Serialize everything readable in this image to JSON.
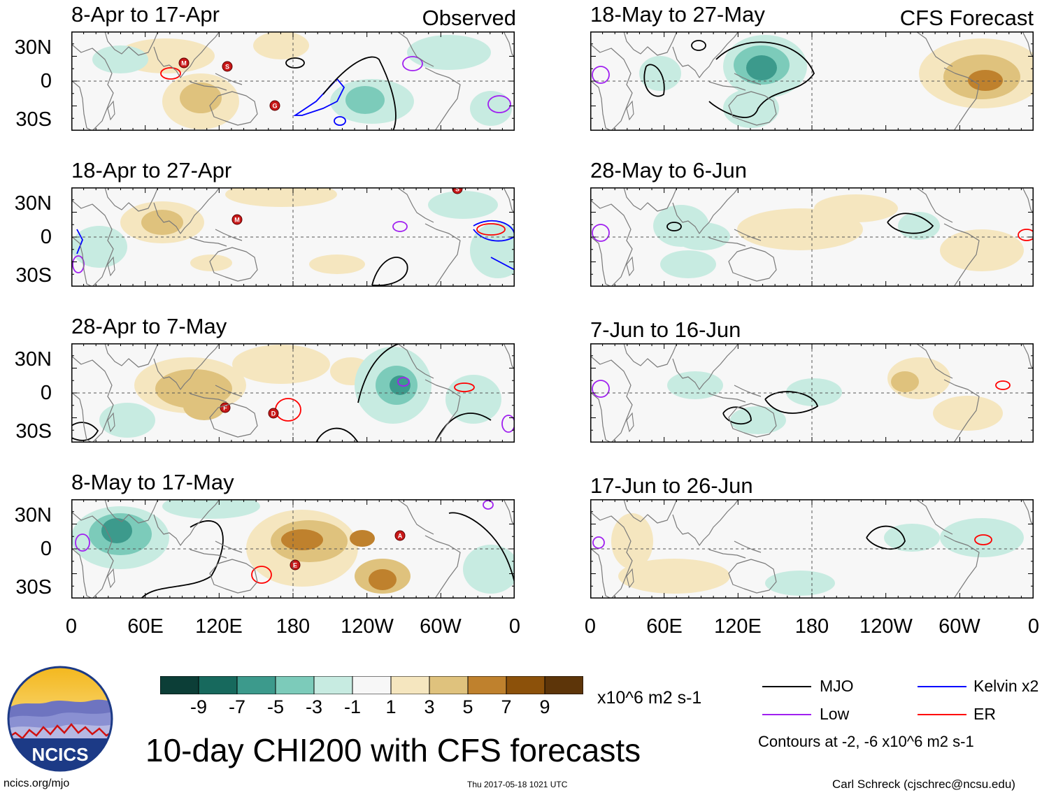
{
  "header": {
    "left_tag": "Observed",
    "right_tag": "CFS Forecast"
  },
  "panels": {
    "observed": [
      {
        "title": "8-Apr to 17-Apr"
      },
      {
        "title": "18-Apr to 27-Apr"
      },
      {
        "title": "28-Apr to 7-May"
      },
      {
        "title": "8-May to 17-May"
      }
    ],
    "forecast": [
      {
        "title": "18-May to 27-May"
      },
      {
        "title": "28-May to 6-Jun"
      },
      {
        "title": "7-Jun to 16-Jun"
      },
      {
        "title": "17-Jun to 26-Jun"
      }
    ]
  },
  "lat_labels": [
    "30N",
    "0",
    "30S"
  ],
  "lon_labels": [
    "0",
    "60E",
    "120E",
    "180",
    "120W",
    "60W",
    "0"
  ],
  "storm_letters": [
    "M",
    "S",
    "G",
    "M",
    "S",
    "F",
    "D",
    "E",
    "A"
  ],
  "colorbar": {
    "colors": [
      "#0c3e37",
      "#17695d",
      "#3c9a8c",
      "#7ccbba",
      "#c7ebe1",
      "#f7f7f7",
      "#f5e6bf",
      "#dfc27d",
      "#bf812d",
      "#8c510a",
      "#5d3509"
    ],
    "labels": [
      "-9",
      "-7",
      "-5",
      "-3",
      "-1",
      "1",
      "3",
      "5",
      "7",
      "9"
    ],
    "units": "x10^6 m2 s-1"
  },
  "legend": {
    "items": [
      {
        "label": "MJO",
        "color": "#000000"
      },
      {
        "label": "Kelvin x2",
        "color": "#0000ff"
      },
      {
        "label": "Low",
        "color": "#a020f0"
      },
      {
        "label": "ER",
        "color": "#ff0000"
      }
    ],
    "note": "Contours at -2, -6 x10^6 m2 s-1"
  },
  "logo": {
    "text": "NCICS"
  },
  "main_title": "10-day CHI200 with CFS forecasts",
  "footer": {
    "url": "ncics.org/mjo",
    "timestamp": "Thu 2017-05-18 1021 UTC",
    "credit": "Carl Schreck (cjschrec@ncsu.edu)"
  }
}
